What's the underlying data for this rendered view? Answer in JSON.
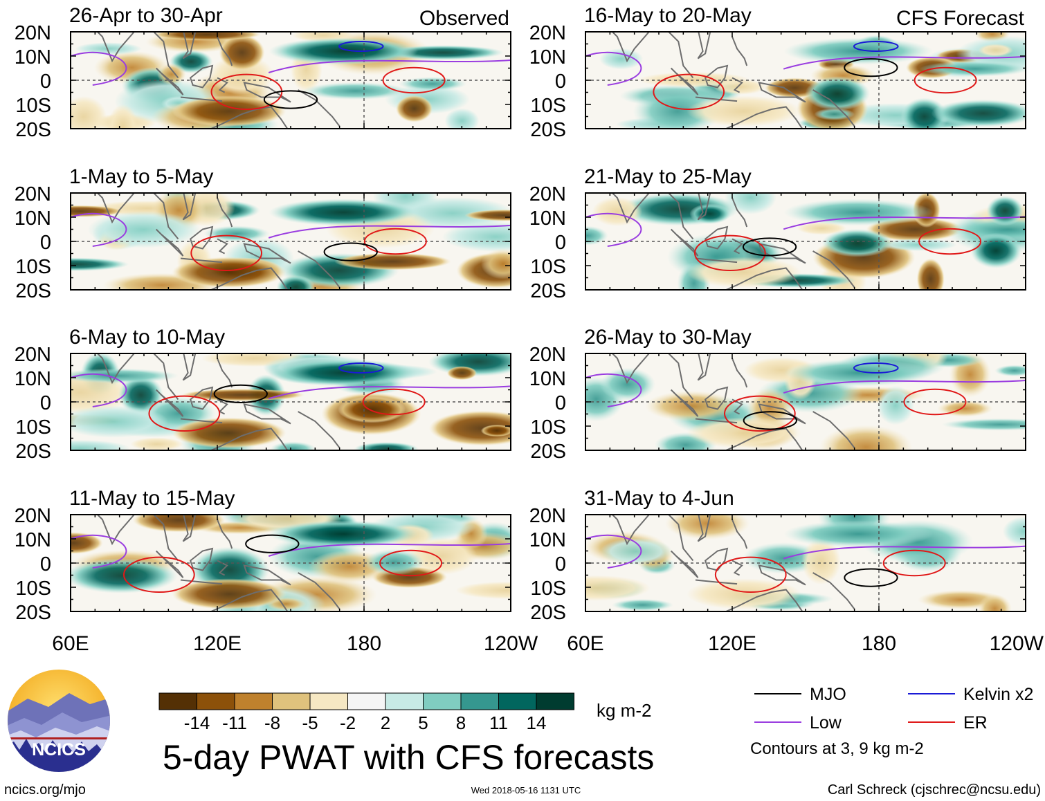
{
  "figure": {
    "title": "5-day PWAT with CFS forecasts",
    "units": "kg m-2",
    "observed_label": "Observed",
    "forecast_label": "CFS Forecast",
    "footer_left": "ncics.org/mjo",
    "footer_center": "Wed 2018-05-16 1131 UTC",
    "footer_right": "Carl Schreck (cjschrec@ncsu.edu)",
    "logo_text": "NCICS",
    "contours_note": "Contours at 3, 9 kg m-2"
  },
  "legend": {
    "lines": [
      {
        "name": "MJO",
        "color": "#000000"
      },
      {
        "name": "Kelvin x2",
        "color": "#1a1ad6"
      },
      {
        "name": "Low",
        "color": "#9a3de0"
      },
      {
        "name": "ER",
        "color": "#e01818"
      }
    ]
  },
  "colorbar": {
    "colors": [
      "#543005",
      "#8c510a",
      "#bf812d",
      "#dfc27d",
      "#f6e8c3",
      "#f5f5f5",
      "#c7eae5",
      "#80cdc1",
      "#35978f",
      "#01665e",
      "#003c30"
    ],
    "tick_labels": [
      "-14",
      "-11",
      "-8",
      "-5",
      "-2",
      "2",
      "5",
      "8",
      "11",
      "14"
    ]
  },
  "chart_data": {
    "type": "heatmap",
    "variable": "5-day PWAT anomaly",
    "x_ticks": [
      "60E",
      "120E",
      "180",
      "120W"
    ],
    "y_ticks": [
      "20N",
      "10N",
      "0",
      "10S",
      "20S"
    ],
    "xlim": [
      60,
      240
    ],
    "ylim": [
      -20,
      20
    ],
    "panels": [
      {
        "title": "26-Apr to 30-Apr",
        "column": "observed",
        "tag": "Observed"
      },
      {
        "title": "1-May to 5-May",
        "column": "observed"
      },
      {
        "title": "6-May to 10-May",
        "column": "observed"
      },
      {
        "title": "11-May to 15-May",
        "column": "observed"
      },
      {
        "title": "16-May to 20-May",
        "column": "forecast",
        "tag": "CFS Forecast"
      },
      {
        "title": "21-May to 25-May",
        "column": "forecast"
      },
      {
        "title": "26-May to 30-May",
        "column": "forecast"
      },
      {
        "title": "31-May to 4-Jun",
        "column": "forecast"
      }
    ]
  }
}
